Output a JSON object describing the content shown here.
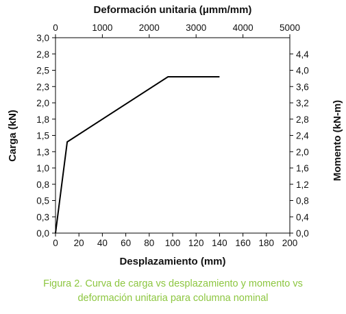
{
  "chart_data": {
    "type": "line",
    "top_axis_label": "Deformación unitaria (μmm/mm)",
    "xlabel": "Desplazamiento (mm)",
    "ylabel": "Carga (kN)",
    "right_axis_label": "Momento (kN-m)",
    "xlim": [
      0,
      200
    ],
    "xticks": [
      "0",
      "20",
      "40",
      "60",
      "80",
      "100",
      "120",
      "140",
      "160",
      "180",
      "200"
    ],
    "top_xlim": [
      0,
      5000
    ],
    "top_xticks": [
      "0",
      "1000",
      "2000",
      "3000",
      "4000",
      "5000"
    ],
    "ylim": [
      0,
      3.0
    ],
    "yticks": [
      {
        "value": 0.0,
        "label": "0,0"
      },
      {
        "value": 0.25,
        "label": "0,3"
      },
      {
        "value": 0.5,
        "label": "0,5"
      },
      {
        "value": 0.75,
        "label": "0,8"
      },
      {
        "value": 1.0,
        "label": "1,0"
      },
      {
        "value": 1.25,
        "label": "1,3"
      },
      {
        "value": 1.5,
        "label": "1,5"
      },
      {
        "value": 1.75,
        "label": "1,8"
      },
      {
        "value": 2.0,
        "label": "2,0"
      },
      {
        "value": 2.25,
        "label": "2,3"
      },
      {
        "value": 2.5,
        "label": "2,5"
      },
      {
        "value": 2.75,
        "label": "2,8"
      },
      {
        "value": 3.0,
        "label": "3,0"
      }
    ],
    "right_ylim": [
      0,
      4.8
    ],
    "right_yticks": [
      "0,0",
      "0,4",
      "0,8",
      "1,2",
      "1,6",
      "2,0",
      "2,4",
      "2,8",
      "3,2",
      "3,6",
      "4,0",
      "4,4"
    ],
    "grid": false,
    "series": [
      {
        "x": [
          0,
          10,
          96,
          140
        ],
        "y": [
          0.0,
          1.4,
          2.4,
          2.4
        ],
        "color": "#000000"
      }
    ]
  },
  "caption": {
    "line1": "Figura 2. Curva de carga vs desplazamiento y momento vs",
    "line2": "deformación unitaria para columna nominal",
    "color": "#8cc63f"
  }
}
